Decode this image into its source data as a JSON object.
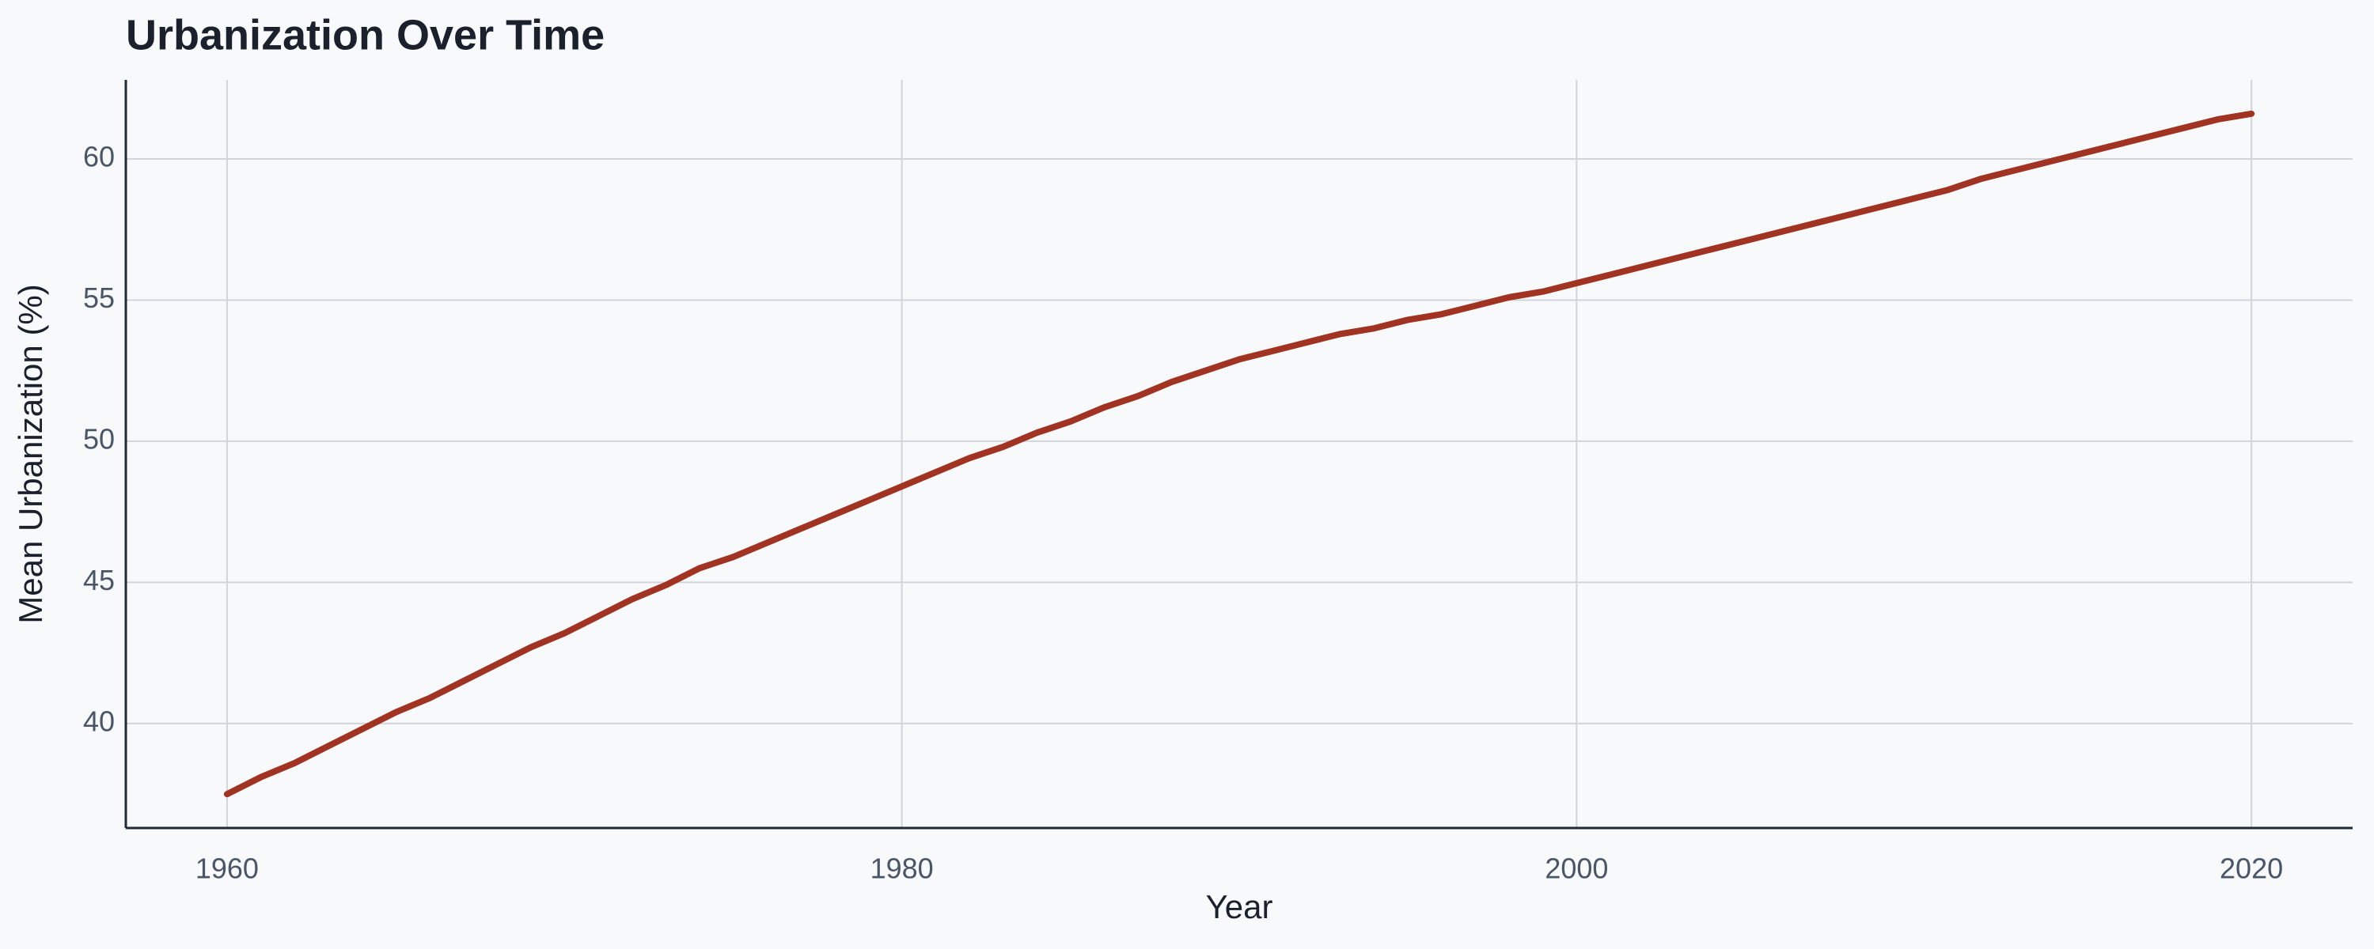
{
  "chart_data": {
    "type": "line",
    "title": "Urbanization Over Time",
    "x_label": "Year",
    "y_label": "Mean Urbanization (%)",
    "x": [
      1960,
      1961,
      1962,
      1963,
      1964,
      1965,
      1966,
      1967,
      1968,
      1969,
      1970,
      1971,
      1972,
      1973,
      1974,
      1975,
      1976,
      1977,
      1978,
      1979,
      1980,
      1981,
      1982,
      1983,
      1984,
      1985,
      1986,
      1987,
      1988,
      1989,
      1990,
      1991,
      1992,
      1993,
      1994,
      1995,
      1996,
      1997,
      1998,
      1999,
      2000,
      2001,
      2002,
      2003,
      2004,
      2005,
      2006,
      2007,
      2008,
      2009,
      2010,
      2011,
      2012,
      2013,
      2014,
      2015,
      2016,
      2017,
      2018,
      2019,
      2020
    ],
    "values": [
      37.5,
      38.1,
      38.6,
      39.2,
      39.8,
      40.4,
      40.9,
      41.5,
      42.1,
      42.7,
      43.2,
      43.8,
      44.4,
      44.9,
      45.5,
      45.9,
      46.4,
      46.9,
      47.4,
      47.9,
      48.4,
      48.9,
      49.4,
      49.8,
      50.3,
      50.7,
      51.2,
      51.6,
      52.1,
      52.5,
      52.9,
      53.2,
      53.5,
      53.8,
      54.0,
      54.3,
      54.5,
      54.8,
      55.1,
      55.3,
      55.6,
      55.9,
      56.2,
      56.5,
      56.8,
      57.1,
      57.4,
      57.7,
      58.0,
      58.3,
      58.6,
      58.9,
      59.3,
      59.6,
      59.9,
      60.2,
      60.5,
      60.8,
      61.1,
      61.4,
      61.6
    ],
    "color": "#a03322",
    "xlim": [
      1957,
      2023
    ],
    "xticks": [
      1960,
      1980,
      2000,
      2020
    ],
    "ylim": [
      36.3,
      62.8
    ],
    "yticks": [
      40,
      45,
      50,
      55,
      60
    ],
    "grid": true
  }
}
